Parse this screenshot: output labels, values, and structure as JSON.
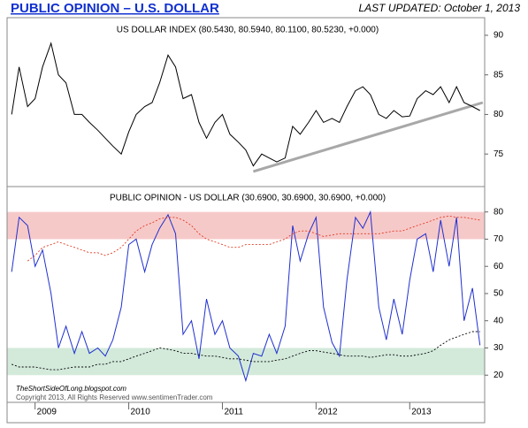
{
  "header": {
    "title": "PUBLIC OPINION – U.S. DOLLAR",
    "updated": "LAST UPDATED:  October 1, 2013"
  },
  "chart_data": [
    {
      "type": "line",
      "title": "US DOLLAR INDEX (80.5430, 80.5940, 80.1100, 80.5230, +0.000)",
      "x": [
        2008.75,
        2008.83,
        2008.92,
        2009.0,
        2009.08,
        2009.17,
        2009.25,
        2009.33,
        2009.42,
        2009.5,
        2009.58,
        2009.67,
        2009.75,
        2009.83,
        2009.92,
        2010.0,
        2010.08,
        2010.17,
        2010.25,
        2010.33,
        2010.42,
        2010.5,
        2010.58,
        2010.67,
        2010.75,
        2010.83,
        2010.92,
        2011.0,
        2011.08,
        2011.17,
        2011.25,
        2011.33,
        2011.42,
        2011.5,
        2011.58,
        2011.67,
        2011.75,
        2011.83,
        2011.92,
        2012.0,
        2012.08,
        2012.17,
        2012.25,
        2012.33,
        2012.42,
        2012.5,
        2012.58,
        2012.67,
        2012.75,
        2012.83,
        2012.92,
        2013.0,
        2013.08,
        2013.17,
        2013.25,
        2013.33,
        2013.42,
        2013.5,
        2013.58,
        2013.67,
        2013.75
      ],
      "series": [
        {
          "color": "#000000",
          "values": [
            80,
            86,
            81,
            82,
            86,
            89,
            85,
            84,
            80,
            80,
            79,
            78,
            77,
            76,
            75,
            77.8,
            80,
            81,
            81.5,
            84,
            87.5,
            86,
            82,
            82.5,
            79,
            77,
            79,
            80,
            77.5,
            76.5,
            75.5,
            73.5,
            75,
            74.5,
            74,
            74.5,
            78.5,
            77.5,
            79,
            80.5,
            79,
            79.5,
            79,
            81,
            83,
            83.5,
            82.5,
            80,
            79.5,
            80.5,
            79.7,
            79.8,
            82,
            83,
            82.5,
            83.5,
            81.5,
            83.5,
            81.5,
            81,
            80.5
          ]
        }
      ],
      "trendline": {
        "color": "#a8a8a8",
        "x": [
          2011.33,
          2013.78
        ],
        "values": [
          72.8,
          81.5
        ]
      },
      "xlim": [
        2008.72,
        2013.8
      ],
      "ylim": [
        71,
        92
      ],
      "yticks": [
        75,
        80,
        85,
        90
      ]
    },
    {
      "type": "line",
      "title": "PUBLIC OPINION - US DOLLAR (30.6900, 30.6900, 30.6900, +0.000)",
      "x": [
        2008.75,
        2008.83,
        2008.92,
        2009.0,
        2009.08,
        2009.17,
        2009.25,
        2009.33,
        2009.42,
        2009.5,
        2009.58,
        2009.67,
        2009.75,
        2009.83,
        2009.92,
        2010.0,
        2010.08,
        2010.17,
        2010.25,
        2010.33,
        2010.42,
        2010.5,
        2010.58,
        2010.67,
        2010.75,
        2010.83,
        2010.92,
        2011.0,
        2011.08,
        2011.17,
        2011.25,
        2011.33,
        2011.42,
        2011.5,
        2011.58,
        2011.67,
        2011.75,
        2011.83,
        2011.92,
        2012.0,
        2012.08,
        2012.17,
        2012.25,
        2012.33,
        2012.42,
        2012.5,
        2012.58,
        2012.67,
        2012.75,
        2012.83,
        2012.92,
        2013.0,
        2013.08,
        2013.17,
        2013.25,
        2013.33,
        2013.42,
        2013.5,
        2013.58,
        2013.67,
        2013.75
      ],
      "bands": [
        {
          "from": 70,
          "to": 80,
          "color": "#f6c9c9"
        },
        {
          "from": 20,
          "to": 30,
          "color": "#d3eadb"
        }
      ],
      "series": [
        {
          "color": "#2030d0",
          "values": [
            58,
            78,
            75,
            60,
            66,
            50,
            30,
            38,
            28,
            36,
            28,
            30,
            27,
            33,
            45,
            68,
            70,
            58,
            68,
            74,
            79,
            72,
            35,
            40,
            26,
            48,
            35,
            40,
            30,
            27,
            18,
            28,
            27,
            35,
            28,
            38,
            75,
            62,
            72,
            78,
            45,
            32,
            27,
            55,
            78,
            74,
            80,
            45,
            33,
            48,
            35,
            55,
            70,
            72,
            58,
            77,
            60,
            78,
            40,
            52,
            31
          ]
        },
        {
          "color": "#e03a20",
          "dashed": true,
          "values": [
            null,
            null,
            62,
            64,
            67,
            68,
            69,
            68,
            67,
            66,
            65,
            65,
            64,
            65,
            67,
            70,
            73,
            75,
            76,
            77.5,
            78,
            78,
            77,
            75,
            72,
            70,
            69,
            68,
            67,
            67,
            68,
            68,
            68,
            68,
            69,
            70,
            72,
            73,
            73,
            72,
            71,
            71.5,
            72,
            72,
            72,
            72,
            72,
            72,
            72.5,
            73,
            73,
            74,
            75,
            76,
            77,
            78,
            78.5,
            78,
            78,
            77.5,
            77
          ]
        },
        {
          "color": "#000000",
          "dashed": true,
          "values": [
            24,
            23,
            23,
            23,
            22.5,
            22,
            22,
            22.5,
            23,
            23,
            23,
            24,
            24,
            25,
            25,
            26,
            27,
            28,
            29,
            30,
            29.5,
            29,
            28,
            28,
            27.5,
            27,
            27,
            26.5,
            26,
            26,
            25.5,
            25,
            25,
            25,
            25.5,
            26,
            27,
            28,
            29,
            29,
            28.5,
            28,
            27.5,
            27,
            27,
            27,
            26.5,
            27,
            27.5,
            27.5,
            27,
            27,
            27.5,
            28,
            29,
            31,
            33,
            34,
            35,
            36,
            36
          ]
        }
      ],
      "xlim": [
        2008.72,
        2013.8
      ],
      "ylim": [
        10,
        89
      ],
      "yticks": [
        20,
        30,
        40,
        50,
        60,
        70,
        80
      ],
      "xticks": [
        2009,
        2010,
        2011,
        2012,
        2013
      ]
    }
  ],
  "footer": {
    "watermark": "TheShortSideOfLong.blogspot.com",
    "copyright": "Copyright 2013, All Rights Reserved  www.sentimenTrader.com"
  }
}
